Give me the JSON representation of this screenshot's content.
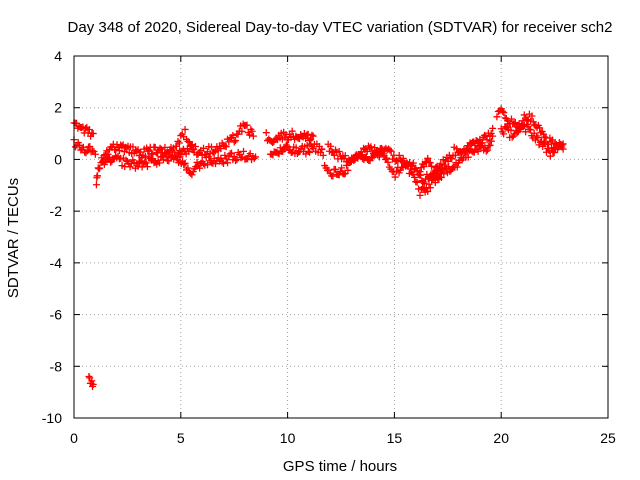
{
  "chart_data": {
    "type": "scatter",
    "title": "Day 348 of 2020, Sidereal Day-to-day VTEC variation (SDTVAR) for receiver sch2",
    "xlabel": "GPS time / hours",
    "ylabel": "SDTVAR / TECUs",
    "xlim": [
      0,
      25
    ],
    "ylim": [
      -10,
      4
    ],
    "xticks": [
      0,
      5,
      10,
      15,
      20,
      25
    ],
    "yticks": [
      -10,
      -8,
      -6,
      -4,
      -2,
      0,
      2,
      4
    ],
    "grid": true,
    "marker": "+",
    "color": "#ff0000",
    "series": [
      {
        "name": "sch2",
        "traces": [
          [
            [
              0.0,
              1.3
            ],
            [
              0.3,
              1.25
            ],
            [
              0.6,
              1.15
            ],
            [
              0.9,
              1.0
            ]
          ],
          [
            [
              0.0,
              0.6
            ],
            [
              0.2,
              0.5
            ],
            [
              0.5,
              0.45
            ],
            [
              0.8,
              0.3
            ],
            [
              1.0,
              0.2
            ]
          ],
          [
            [
              1.05,
              -1.0
            ],
            [
              1.1,
              -0.6
            ],
            [
              1.2,
              -0.2
            ],
            [
              1.4,
              0.1
            ],
            [
              1.6,
              0.3
            ],
            [
              1.9,
              0.5
            ],
            [
              2.3,
              0.45
            ],
            [
              2.7,
              0.35
            ],
            [
              3.0,
              0.2
            ],
            [
              3.4,
              0.3
            ],
            [
              3.8,
              0.4
            ],
            [
              4.2,
              0.3
            ],
            [
              4.6,
              0.4
            ],
            [
              5.0,
              0.3
            ],
            [
              5.5,
              0.4
            ],
            [
              6.0,
              0.3
            ],
            [
              6.5,
              0.35
            ],
            [
              7.0,
              0.5
            ],
            [
              7.5,
              0.8
            ],
            [
              7.8,
              1.2
            ],
            [
              8.1,
              1.2
            ],
            [
              8.4,
              0.9
            ]
          ],
          [
            [
              1.3,
              0.0
            ],
            [
              1.6,
              -0.1
            ],
            [
              2.0,
              0.0
            ],
            [
              2.5,
              -0.15
            ],
            [
              3.0,
              -0.2
            ],
            [
              3.5,
              -0.1
            ],
            [
              4.0,
              0.0
            ],
            [
              4.5,
              0.1
            ],
            [
              4.9,
              0.0
            ],
            [
              5.2,
              -0.3
            ],
            [
              5.4,
              -0.6
            ],
            [
              5.7,
              -0.3
            ],
            [
              6.0,
              -0.1
            ],
            [
              6.5,
              -0.05
            ],
            [
              7.0,
              0.0
            ],
            [
              7.5,
              0.1
            ],
            [
              8.0,
              0.15
            ],
            [
              8.5,
              0.1
            ]
          ],
          [
            [
              4.8,
              0.5
            ],
            [
              5.0,
              0.8
            ],
            [
              5.2,
              1.0
            ],
            [
              5.4,
              0.7
            ],
            [
              5.6,
              0.4
            ]
          ],
          [
            [
              9.0,
              0.9
            ],
            [
              9.3,
              0.8
            ],
            [
              9.7,
              0.9
            ],
            [
              10.1,
              0.95
            ],
            [
              10.5,
              0.9
            ],
            [
              10.9,
              0.85
            ],
            [
              11.2,
              0.9
            ]
          ],
          [
            [
              9.2,
              0.2
            ],
            [
              9.6,
              0.3
            ],
            [
              10.0,
              0.4
            ],
            [
              10.4,
              0.3
            ],
            [
              10.8,
              0.35
            ],
            [
              11.2,
              0.5
            ],
            [
              11.6,
              0.4
            ]
          ],
          [
            [
              11.6,
              0.3
            ],
            [
              11.8,
              -0.4
            ],
            [
              12.0,
              -0.6
            ],
            [
              12.3,
              -0.5
            ],
            [
              12.7,
              -0.4
            ],
            [
              13.0,
              -0.1
            ],
            [
              13.4,
              0.1
            ],
            [
              13.8,
              0.0
            ],
            [
              14.1,
              0.2
            ],
            [
              14.4,
              0.3
            ],
            [
              14.7,
              0.0
            ],
            [
              14.9,
              -0.6
            ],
            [
              15.1,
              -0.5
            ],
            [
              15.4,
              -0.2
            ],
            [
              15.7,
              -0.4
            ],
            [
              16.0,
              -0.8
            ],
            [
              16.2,
              -1.3
            ],
            [
              16.5,
              -1.2
            ],
            [
              16.8,
              -0.8
            ],
            [
              17.2,
              -0.6
            ],
            [
              17.6,
              -0.3
            ],
            [
              18.0,
              -0.1
            ],
            [
              18.4,
              0.2
            ],
            [
              18.8,
              0.3
            ],
            [
              19.1,
              0.6
            ],
            [
              19.4,
              1.0
            ],
            [
              19.6,
              1.2
            ]
          ],
          [
            [
              11.9,
              0.5
            ],
            [
              12.3,
              0.2
            ],
            [
              12.7,
              0.0
            ],
            [
              13.1,
              0.1
            ],
            [
              13.5,
              0.3
            ],
            [
              13.9,
              0.4
            ],
            [
              14.3,
              0.2
            ],
            [
              14.6,
              0.5
            ],
            [
              15.1,
              0.0
            ],
            [
              15.6,
              0.0
            ],
            [
              16.0,
              -0.3
            ],
            [
              16.4,
              -0.8
            ],
            [
              16.7,
              -0.6
            ],
            [
              17.0,
              -0.3
            ],
            [
              17.4,
              -0.1
            ],
            [
              17.8,
              0.3
            ],
            [
              18.2,
              0.4
            ],
            [
              18.6,
              0.5
            ],
            [
              19.0,
              0.8
            ],
            [
              19.3,
              0.3
            ],
            [
              19.6,
              0.9
            ]
          ],
          [
            [
              16.2,
              -0.3
            ],
            [
              16.5,
              0.0
            ],
            [
              16.8,
              -0.4
            ],
            [
              17.2,
              -0.7
            ]
          ],
          [
            [
              19.8,
              1.6
            ],
            [
              20.0,
              1.9
            ],
            [
              20.3,
              1.6
            ],
            [
              20.6,
              1.3
            ],
            [
              20.9,
              1.4
            ],
            [
              21.2,
              1.7
            ],
            [
              21.5,
              1.5
            ],
            [
              21.8,
              1.1
            ],
            [
              22.1,
              0.8
            ],
            [
              22.4,
              0.6
            ],
            [
              22.7,
              0.5
            ],
            [
              22.9,
              0.4
            ]
          ],
          [
            [
              20.0,
              1.2
            ],
            [
              20.4,
              1.0
            ],
            [
              20.8,
              1.1
            ],
            [
              21.2,
              1.2
            ],
            [
              21.6,
              0.9
            ],
            [
              22.0,
              0.5
            ],
            [
              22.3,
              0.3
            ],
            [
              22.6,
              0.4
            ],
            [
              22.9,
              0.6
            ]
          ],
          [
            [
              0.7,
              -8.5
            ],
            [
              0.8,
              -8.6
            ],
            [
              0.9,
              -8.7
            ]
          ]
        ]
      }
    ]
  }
}
